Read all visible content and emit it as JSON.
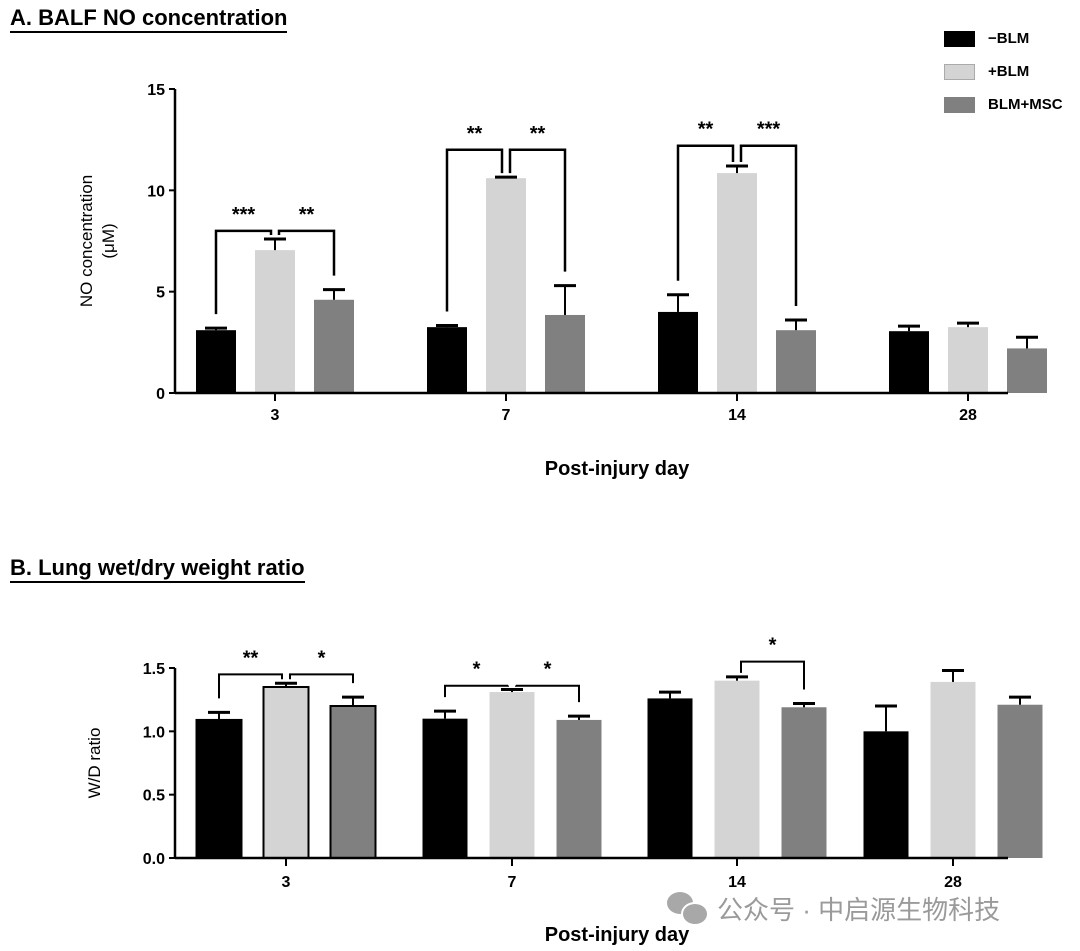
{
  "figure": {
    "legend": [
      {
        "label": "−BLM",
        "color": "#000000"
      },
      {
        "label": "+BLM",
        "color": "#d4d4d4"
      },
      {
        "label": "BLM+MSC",
        "color": "#808080"
      }
    ],
    "watermark": "公众号 · 中启源生物科技"
  },
  "chart_data": [
    {
      "type": "bar",
      "title": "A. BALF NO concentration",
      "xlabel": "Post-injury day",
      "ylabel_line1": "NO concentration",
      "ylabel_line2": "(μM)",
      "categories": [
        "3",
        "7",
        "14",
        "28"
      ],
      "ylim": [
        0,
        15
      ],
      "yticks": [
        0,
        5,
        10,
        15
      ],
      "ytick_labels": [
        "0",
        "5",
        "10",
        "15"
      ],
      "series": [
        {
          "name": "−BLM",
          "color": "#000000",
          "values": [
            3.1,
            3.25,
            4.0,
            3.05
          ],
          "errors": [
            0.1,
            0.08,
            0.85,
            0.25
          ]
        },
        {
          "name": "+BLM",
          "color": "#d4d4d4",
          "values": [
            7.05,
            10.6,
            10.85,
            3.25
          ],
          "errors": [
            0.55,
            0.05,
            0.35,
            0.2
          ]
        },
        {
          "name": "BLM+MSC",
          "color": "#808080",
          "values": [
            4.6,
            3.85,
            3.1,
            2.2
          ],
          "errors": [
            0.5,
            1.45,
            0.5,
            0.55
          ]
        }
      ],
      "significance": [
        {
          "category": 0,
          "from": 0,
          "to": 1,
          "label": "***",
          "y": 8.0
        },
        {
          "category": 0,
          "from": 1,
          "to": 2,
          "label": "**",
          "y": 8.0
        },
        {
          "category": 1,
          "from": 0,
          "to": 1,
          "label": "**",
          "y": 12.0
        },
        {
          "category": 1,
          "from": 1,
          "to": 2,
          "label": "**",
          "y": 12.0
        },
        {
          "category": 2,
          "from": 0,
          "to": 1,
          "label": "**",
          "y": 12.2
        },
        {
          "category": 2,
          "from": 1,
          "to": 2,
          "label": "***",
          "y": 12.2
        }
      ]
    },
    {
      "type": "bar",
      "title": "B. Lung wet/dry weight ratio",
      "xlabel": "Post-injury day",
      "ylabel_line1": "W/D ratio",
      "ylabel_line2": "",
      "categories": [
        "3",
        "7",
        "14",
        "28"
      ],
      "ylim": [
        0,
        1.5
      ],
      "yticks": [
        0,
        0.5,
        1.0,
        1.5
      ],
      "ytick_labels": [
        "0.0",
        "0.5",
        "1.0",
        "1.5"
      ],
      "series": [
        {
          "name": "−BLM",
          "color": "#000000",
          "values": [
            1.09,
            1.1,
            1.26,
            1.0
          ],
          "errors": [
            0.06,
            0.06,
            0.05,
            0.2
          ]
        },
        {
          "name": "+BLM",
          "color": "#d4d4d4",
          "values": [
            1.35,
            1.31,
            1.4,
            1.39
          ],
          "errors": [
            0.03,
            0.02,
            0.03,
            0.09
          ]
        },
        {
          "name": "BLM+MSC",
          "color": "#808080",
          "values": [
            1.2,
            1.09,
            1.19,
            1.21
          ],
          "errors": [
            0.07,
            0.03,
            0.03,
            0.06
          ]
        }
      ],
      "outlined_bars_category": 0,
      "significance": [
        {
          "category": 0,
          "from": 0,
          "to": 1,
          "label": "**",
          "y": 1.45
        },
        {
          "category": 0,
          "from": 1,
          "to": 2,
          "label": "*",
          "y": 1.45
        },
        {
          "category": 1,
          "from": 0,
          "to": 1,
          "label": "*",
          "y": 1.36
        },
        {
          "category": 1,
          "from": 1,
          "to": 2,
          "label": "*",
          "y": 1.36
        },
        {
          "category": 2,
          "from": 1,
          "to": 2,
          "label": "*",
          "y": 1.55
        }
      ]
    }
  ]
}
